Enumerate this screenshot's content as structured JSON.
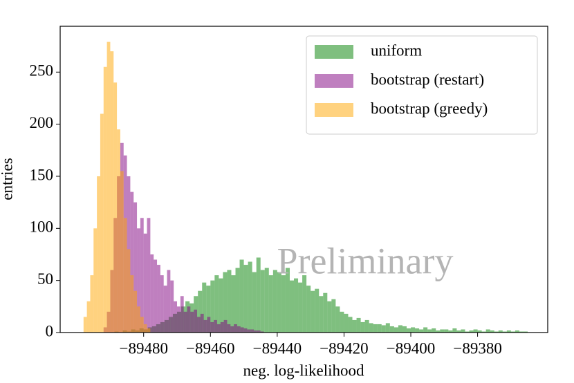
{
  "chart_data": {
    "type": "histogram",
    "xlabel": "neg. log-likelihood",
    "ylabel": "entries",
    "annotation": "Preliminary",
    "xlim": [
      -89505,
      -89359
    ],
    "ylim": [
      0,
      294
    ],
    "xticks": [
      {
        "value": -89480,
        "label": "−89480"
      },
      {
        "value": -89460,
        "label": "−89460"
      },
      {
        "value": -89440,
        "label": "−89440"
      },
      {
        "value": -89420,
        "label": "−89420"
      },
      {
        "value": -89400,
        "label": "−89400"
      },
      {
        "value": -89380,
        "label": "−89380"
      }
    ],
    "yticks": [
      0,
      50,
      100,
      150,
      200,
      250
    ],
    "alpha": 0.5,
    "legend": "upper right",
    "series": [
      {
        "name": "uniform",
        "color": "#008000",
        "bins": [
          -89490,
          -89488.75,
          -89487.5,
          -89486.25,
          -89485,
          -89483.75,
          -89482.5,
          -89481.25,
          -89480,
          -89478.75,
          -89477.5,
          -89476.25,
          -89475,
          -89473.75,
          -89472.5,
          -89471.25,
          -89470,
          -89468.75,
          -89467.5,
          -89466.25,
          -89465,
          -89463.75,
          -89462.5,
          -89461.25,
          -89460,
          -89458.75,
          -89457.5,
          -89456.25,
          -89455,
          -89453.75,
          -89452.5,
          -89451.25,
          -89450,
          -89448.75,
          -89447.5,
          -89446.25,
          -89445,
          -89443.75,
          -89442.5,
          -89441.25,
          -89440,
          -89438.75,
          -89437.5,
          -89436.25,
          -89435,
          -89433.75,
          -89432.5,
          -89431.25,
          -89430,
          -89428.75,
          -89427.5,
          -89426.25,
          -89425,
          -89423.75,
          -89422.5,
          -89421.25,
          -89420,
          -89418.75,
          -89417.5,
          -89416.25,
          -89415,
          -89413.75,
          -89412.5,
          -89411.25,
          -89410,
          -89408.75,
          -89407.5,
          -89406.25,
          -89405,
          -89403.75,
          -89402.5,
          -89401.25,
          -89400,
          -89398.75,
          -89397.5,
          -89396.25,
          -89395,
          -89393.75,
          -89392.5,
          -89391.25,
          -89390,
          -89388.75,
          -89387.5,
          -89386.25,
          -89385,
          -89383.75,
          -89382.5,
          -89381.25,
          -89380,
          -89378.75,
          -89377.5,
          -89376.25,
          -89375,
          -89373.75,
          -89372.5,
          -89371.25,
          -89370,
          -89368.75,
          -89367.5,
          -89366.25,
          -89365
        ],
        "values": [
          0,
          1,
          0,
          2,
          1,
          3,
          2,
          4,
          3,
          5,
          6,
          8,
          10,
          12,
          15,
          18,
          20,
          25,
          30,
          28,
          35,
          40,
          48,
          45,
          50,
          55,
          52,
          58,
          60,
          55,
          62,
          70,
          65,
          68,
          58,
          72,
          60,
          62,
          55,
          60,
          58,
          55,
          62,
          50,
          52,
          48,
          55,
          45,
          40,
          42,
          35,
          38,
          30,
          32,
          25,
          20,
          18,
          15,
          12,
          14,
          10,
          12,
          9,
          8,
          8,
          7,
          9,
          6,
          5,
          7,
          6,
          4,
          5,
          4,
          3,
          5,
          3,
          4,
          2,
          3,
          3,
          2,
          4,
          2,
          3,
          1,
          2,
          3,
          2,
          1,
          3,
          2,
          1,
          2,
          1,
          2,
          1,
          2,
          1,
          1
        ]
      },
      {
        "name": "bootstrap (restart)",
        "color": "#800080",
        "bins": [
          -89492,
          -89491,
          -89490,
          -89489,
          -89488,
          -89487,
          -89486,
          -89485,
          -89484,
          -89483,
          -89482,
          -89481,
          -89480,
          -89479,
          -89478,
          -89477,
          -89476,
          -89475,
          -89474,
          -89473,
          -89472,
          -89471,
          -89470,
          -89469,
          -89468,
          -89467,
          -89466,
          -89465,
          -89464,
          -89463,
          -89462,
          -89461,
          -89460,
          -89459,
          -89458,
          -89457,
          -89456,
          -89455,
          -89454,
          -89453,
          -89452,
          -89451,
          -89450,
          -89449,
          -89448,
          -89447,
          -89446,
          -89445,
          -89444
        ],
        "values": [
          5,
          20,
          60,
          110,
          150,
          182,
          170,
          150,
          135,
          125,
          100,
          110,
          95,
          110,
          75,
          70,
          65,
          55,
          45,
          60,
          50,
          30,
          25,
          35,
          20,
          25,
          20,
          22,
          15,
          18,
          12,
          15,
          10,
          12,
          8,
          10,
          12,
          8,
          6,
          8,
          6,
          5,
          4,
          3,
          3,
          2,
          2,
          1
        ]
      },
      {
        "name": "bootstrap (greedy)",
        "color": "#ffa500",
        "bins": [
          -89498,
          -89497,
          -89496,
          -89495,
          -89494,
          -89493,
          -89492,
          -89491,
          -89490,
          -89489,
          -89488,
          -89487,
          -89486,
          -89485,
          -89484,
          -89483,
          -89482,
          -89481,
          -89480,
          -89479,
          -89478
        ],
        "values": [
          15,
          30,
          55,
          100,
          150,
          210,
          255,
          279,
          270,
          240,
          195,
          155,
          110,
          80,
          55,
          40,
          25,
          15,
          8,
          4
        ]
      }
    ]
  }
}
